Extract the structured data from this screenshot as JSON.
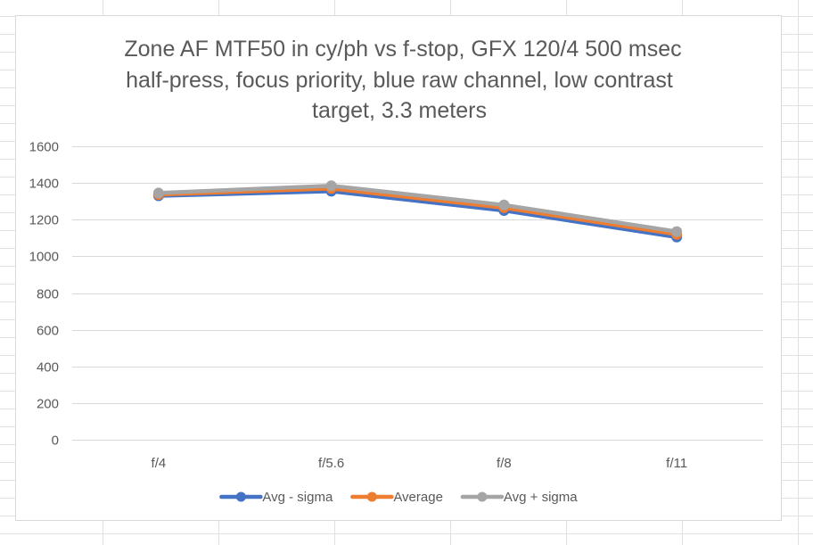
{
  "chart_data": {
    "type": "line",
    "title_lines": [
      "Zone AF MTF50 in cy/ph vs f-stop, GFX 120/4 500 msec",
      "half-press, focus priority, blue raw channel, low contrast",
      "target, 3.3 meters"
    ],
    "categories": [
      "f/4",
      "f/5.6",
      "f/8",
      "f/11"
    ],
    "y_ticks": [
      "0",
      "200",
      "400",
      "600",
      "800",
      "1000",
      "1200",
      "1400",
      "1600"
    ],
    "ylim": [
      0,
      1600
    ],
    "grid": true,
    "legend_position": "bottom",
    "series": [
      {
        "name": "Avg - sigma",
        "color": "#4472c4",
        "values": [
          1330,
          1355,
          1250,
          1105
        ]
      },
      {
        "name": "Average",
        "color": "#ed7d31",
        "values": [
          1337,
          1370,
          1265,
          1120
        ]
      },
      {
        "name": "Avg + sigma",
        "color": "#a5a5a5",
        "values": [
          1345,
          1385,
          1280,
          1135
        ]
      }
    ]
  }
}
